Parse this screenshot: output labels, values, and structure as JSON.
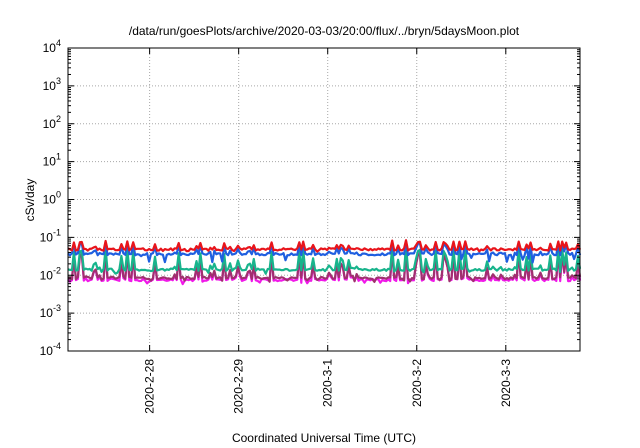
{
  "chart_data": {
    "type": "line",
    "title": "/data/run/goesPlots/archive/2020-03-03/20:00/flux/../bryn/5daysMoon.plot",
    "xlabel": "Coordinated Universal Time (UTC)",
    "ylabel": "cSv/day",
    "yscale": "log",
    "ylim": [
      0.0001,
      10000
    ],
    "yticks": [
      {
        "value": 0.0001,
        "base": "10",
        "exp": "-4"
      },
      {
        "value": 0.001,
        "base": "10",
        "exp": "-3"
      },
      {
        "value": 0.01,
        "base": "10",
        "exp": "-2"
      },
      {
        "value": 0.1,
        "base": "10",
        "exp": "-1"
      },
      {
        "value": 1,
        "base": "10",
        "exp": "0"
      },
      {
        "value": 10,
        "base": "10",
        "exp": "1"
      },
      {
        "value": 100,
        "base": "10",
        "exp": "2"
      },
      {
        "value": 1000,
        "base": "10",
        "exp": "3"
      },
      {
        "value": 10000,
        "base": "10",
        "exp": "4"
      }
    ],
    "xlim": [
      "2020-02-27 02:00",
      "2020-03-03 20:00"
    ],
    "xticks": [
      "2020-2-28",
      "2020-2-29",
      "2020-3-1",
      "2020-3-2",
      "2020-3-3"
    ],
    "grid": true,
    "legend": "none",
    "series": [
      {
        "color": "#e8141b",
        "base": 0.048,
        "spike_max": 0.085,
        "dip_min": 0.042
      },
      {
        "color": "#1f5fe0",
        "base": 0.036,
        "spike_max": 0.08,
        "dip_min": 0.02
      },
      {
        "color": "#18b48c",
        "base": 0.014,
        "spike_max": 0.06,
        "dip_min": 0.011
      },
      {
        "color": "#a0306e",
        "base": 0.0085,
        "spike_max": 0.05,
        "dip_min": 0.0065
      },
      {
        "color": "#f019e8",
        "base": 0.0075,
        "spike_max": 0.06,
        "dip_min": 0.0058
      }
    ]
  }
}
